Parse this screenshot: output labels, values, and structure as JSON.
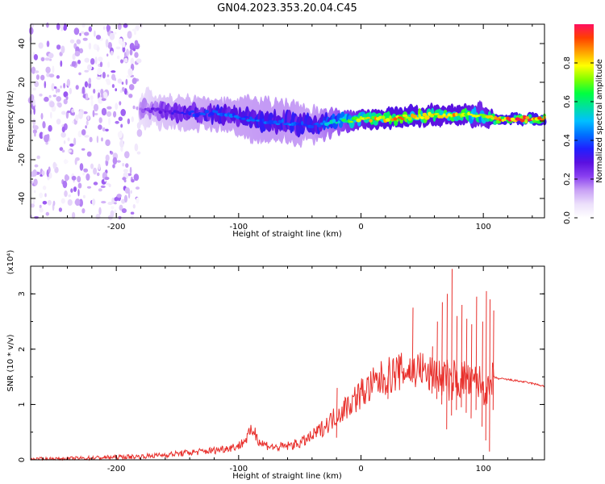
{
  "title": "GN04.2023.353.20.04.C45",
  "colors": {
    "snr_line": "#e8302c",
    "axes": "#000000",
    "colormap": [
      "#ffffff",
      "#ece0fb",
      "#c8a0f5",
      "#8a40f0",
      "#5a10e0",
      "#2020ff",
      "#0070ff",
      "#00c0ff",
      "#00e0a0",
      "#00ff40",
      "#80ff00",
      "#ffff00",
      "#ffa000",
      "#ff4000",
      "#ff1060"
    ]
  },
  "chart_data": [
    {
      "type": "heatmap",
      "title": "GN04.2023.353.20.04.C45",
      "xlabel": "Height of straight line (km)",
      "ylabel": "Frequency (Hz)",
      "xlim": [
        -270,
        150
      ],
      "ylim": [
        -50,
        50
      ],
      "x_ticks": [
        -200,
        -100,
        0,
        100
      ],
      "y_ticks": [
        -40,
        -20,
        0,
        20,
        40
      ],
      "x_tick_labels": [
        "-200",
        "-100",
        "0",
        "100"
      ],
      "y_tick_labels": [
        "-40",
        "-20",
        "0",
        "20",
        "40"
      ],
      "colorbar": {
        "label": "Normalized spectral amplitude",
        "range": [
          0,
          1
        ],
        "ticks": [
          0.0,
          0.2,
          0.4,
          0.6,
          0.8
        ],
        "tick_labels": [
          "0.0",
          "0.2",
          "0.4",
          "0.6",
          "0.8"
        ]
      },
      "noise_region": {
        "x_range": [
          -270,
          -180
        ],
        "frequency_range": [
          -50,
          50
        ],
        "amplitude_range": [
          0.02,
          0.2
        ]
      },
      "ridge": [
        {
          "x": -180,
          "frequency": 6,
          "width": 8,
          "amplitude": 0.2
        },
        {
          "x": -160,
          "frequency": 5,
          "width": 7,
          "amplitude": 0.3
        },
        {
          "x": -140,
          "frequency": 4,
          "width": 7,
          "amplitude": 0.35
        },
        {
          "x": -120,
          "frequency": 4,
          "width": 7,
          "amplitude": 0.4
        },
        {
          "x": -100,
          "frequency": 2,
          "width": 8,
          "amplitude": 0.4
        },
        {
          "x": -80,
          "frequency": 0,
          "width": 9,
          "amplitude": 0.42
        },
        {
          "x": -60,
          "frequency": -1,
          "width": 9,
          "amplitude": 0.42
        },
        {
          "x": -40,
          "frequency": -2,
          "width": 8,
          "amplitude": 0.4
        },
        {
          "x": -20,
          "frequency": 0,
          "width": 5,
          "amplitude": 0.55
        },
        {
          "x": 0,
          "frequency": 1,
          "width": 4,
          "amplitude": 0.75
        },
        {
          "x": 20,
          "frequency": 1,
          "width": 4,
          "amplitude": 0.85
        },
        {
          "x": 40,
          "frequency": 2,
          "width": 4,
          "amplitude": 0.85
        },
        {
          "x": 60,
          "frequency": 3,
          "width": 4,
          "amplitude": 0.8
        },
        {
          "x": 80,
          "frequency": 3,
          "width": 4,
          "amplitude": 0.82
        },
        {
          "x": 100,
          "frequency": 3,
          "width": 5,
          "amplitude": 0.7
        },
        {
          "x": 110,
          "frequency": 1,
          "width": 2,
          "amplitude": 0.9
        },
        {
          "x": 150,
          "frequency": 1,
          "width": 2,
          "amplitude": 0.9
        }
      ]
    },
    {
      "type": "line",
      "xlabel": "Height of straight line (km)",
      "ylabel": "SNR (10 * v/v)",
      "y_multiplier_label": "(x10⁴)",
      "xlim": [
        -270,
        150
      ],
      "ylim": [
        0,
        3.5
      ],
      "x_ticks": [
        -200,
        -100,
        0,
        100
      ],
      "y_ticks": [
        0,
        1,
        2,
        3
      ],
      "x_tick_labels": [
        "-200",
        "-100",
        "0",
        "100"
      ],
      "y_tick_labels": [
        "0",
        "1",
        "2",
        "3"
      ],
      "series": [
        {
          "x": [
            -270,
            -240,
            -210,
            -180,
            -160,
            -140,
            -120,
            -100,
            -95,
            -88,
            -82,
            -70,
            -60,
            -50,
            -40,
            -30,
            -20,
            -10,
            0,
            10,
            20,
            30,
            40,
            50,
            55,
            60,
            65,
            70,
            73,
            76,
            80,
            85,
            90,
            95,
            100,
            105,
            108,
            112,
            120,
            130,
            140,
            150
          ],
          "values": [
            0.01,
            0.02,
            0.04,
            0.06,
            0.09,
            0.13,
            0.17,
            0.25,
            0.35,
            0.55,
            0.3,
            0.22,
            0.25,
            0.3,
            0.42,
            0.6,
            0.8,
            1.0,
            1.2,
            1.35,
            1.5,
            1.58,
            1.62,
            1.65,
            1.5,
            1.6,
            1.45,
            1.55,
            1.3,
            1.5,
            1.4,
            1.5,
            1.35,
            1.45,
            1.3,
            1.2,
            1.5,
            1.47,
            1.45,
            1.42,
            1.38,
            1.33
          ],
          "spikes": [
            {
              "x": -20,
              "high": 1.3,
              "low": 0.4
            },
            {
              "x": 22,
              "high": 1.7,
              "low": 1.1
            },
            {
              "x": 42,
              "high": 2.75,
              "low": 1.4
            },
            {
              "x": 58,
              "high": 2.05,
              "low": 1.2
            },
            {
              "x": 62,
              "high": 2.5,
              "low": 1.1
            },
            {
              "x": 66,
              "high": 2.85,
              "low": 1.0
            },
            {
              "x": 70,
              "high": 3.0,
              "low": 0.55
            },
            {
              "x": 74,
              "high": 3.45,
              "low": 0.8
            },
            {
              "x": 78,
              "high": 2.6,
              "low": 0.9
            },
            {
              "x": 82,
              "high": 2.8,
              "low": 0.95
            },
            {
              "x": 86,
              "high": 2.55,
              "low": 0.85
            },
            {
              "x": 90,
              "high": 2.45,
              "low": 0.75
            },
            {
              "x": 94,
              "high": 2.95,
              "low": 0.9
            },
            {
              "x": 99,
              "high": 2.5,
              "low": 0.6
            },
            {
              "x": 102,
              "high": 3.05,
              "low": 0.35
            },
            {
              "x": 105,
              "high": 2.9,
              "low": 0.15
            },
            {
              "x": 108,
              "high": 2.7,
              "low": 0.9
            }
          ]
        }
      ]
    }
  ]
}
